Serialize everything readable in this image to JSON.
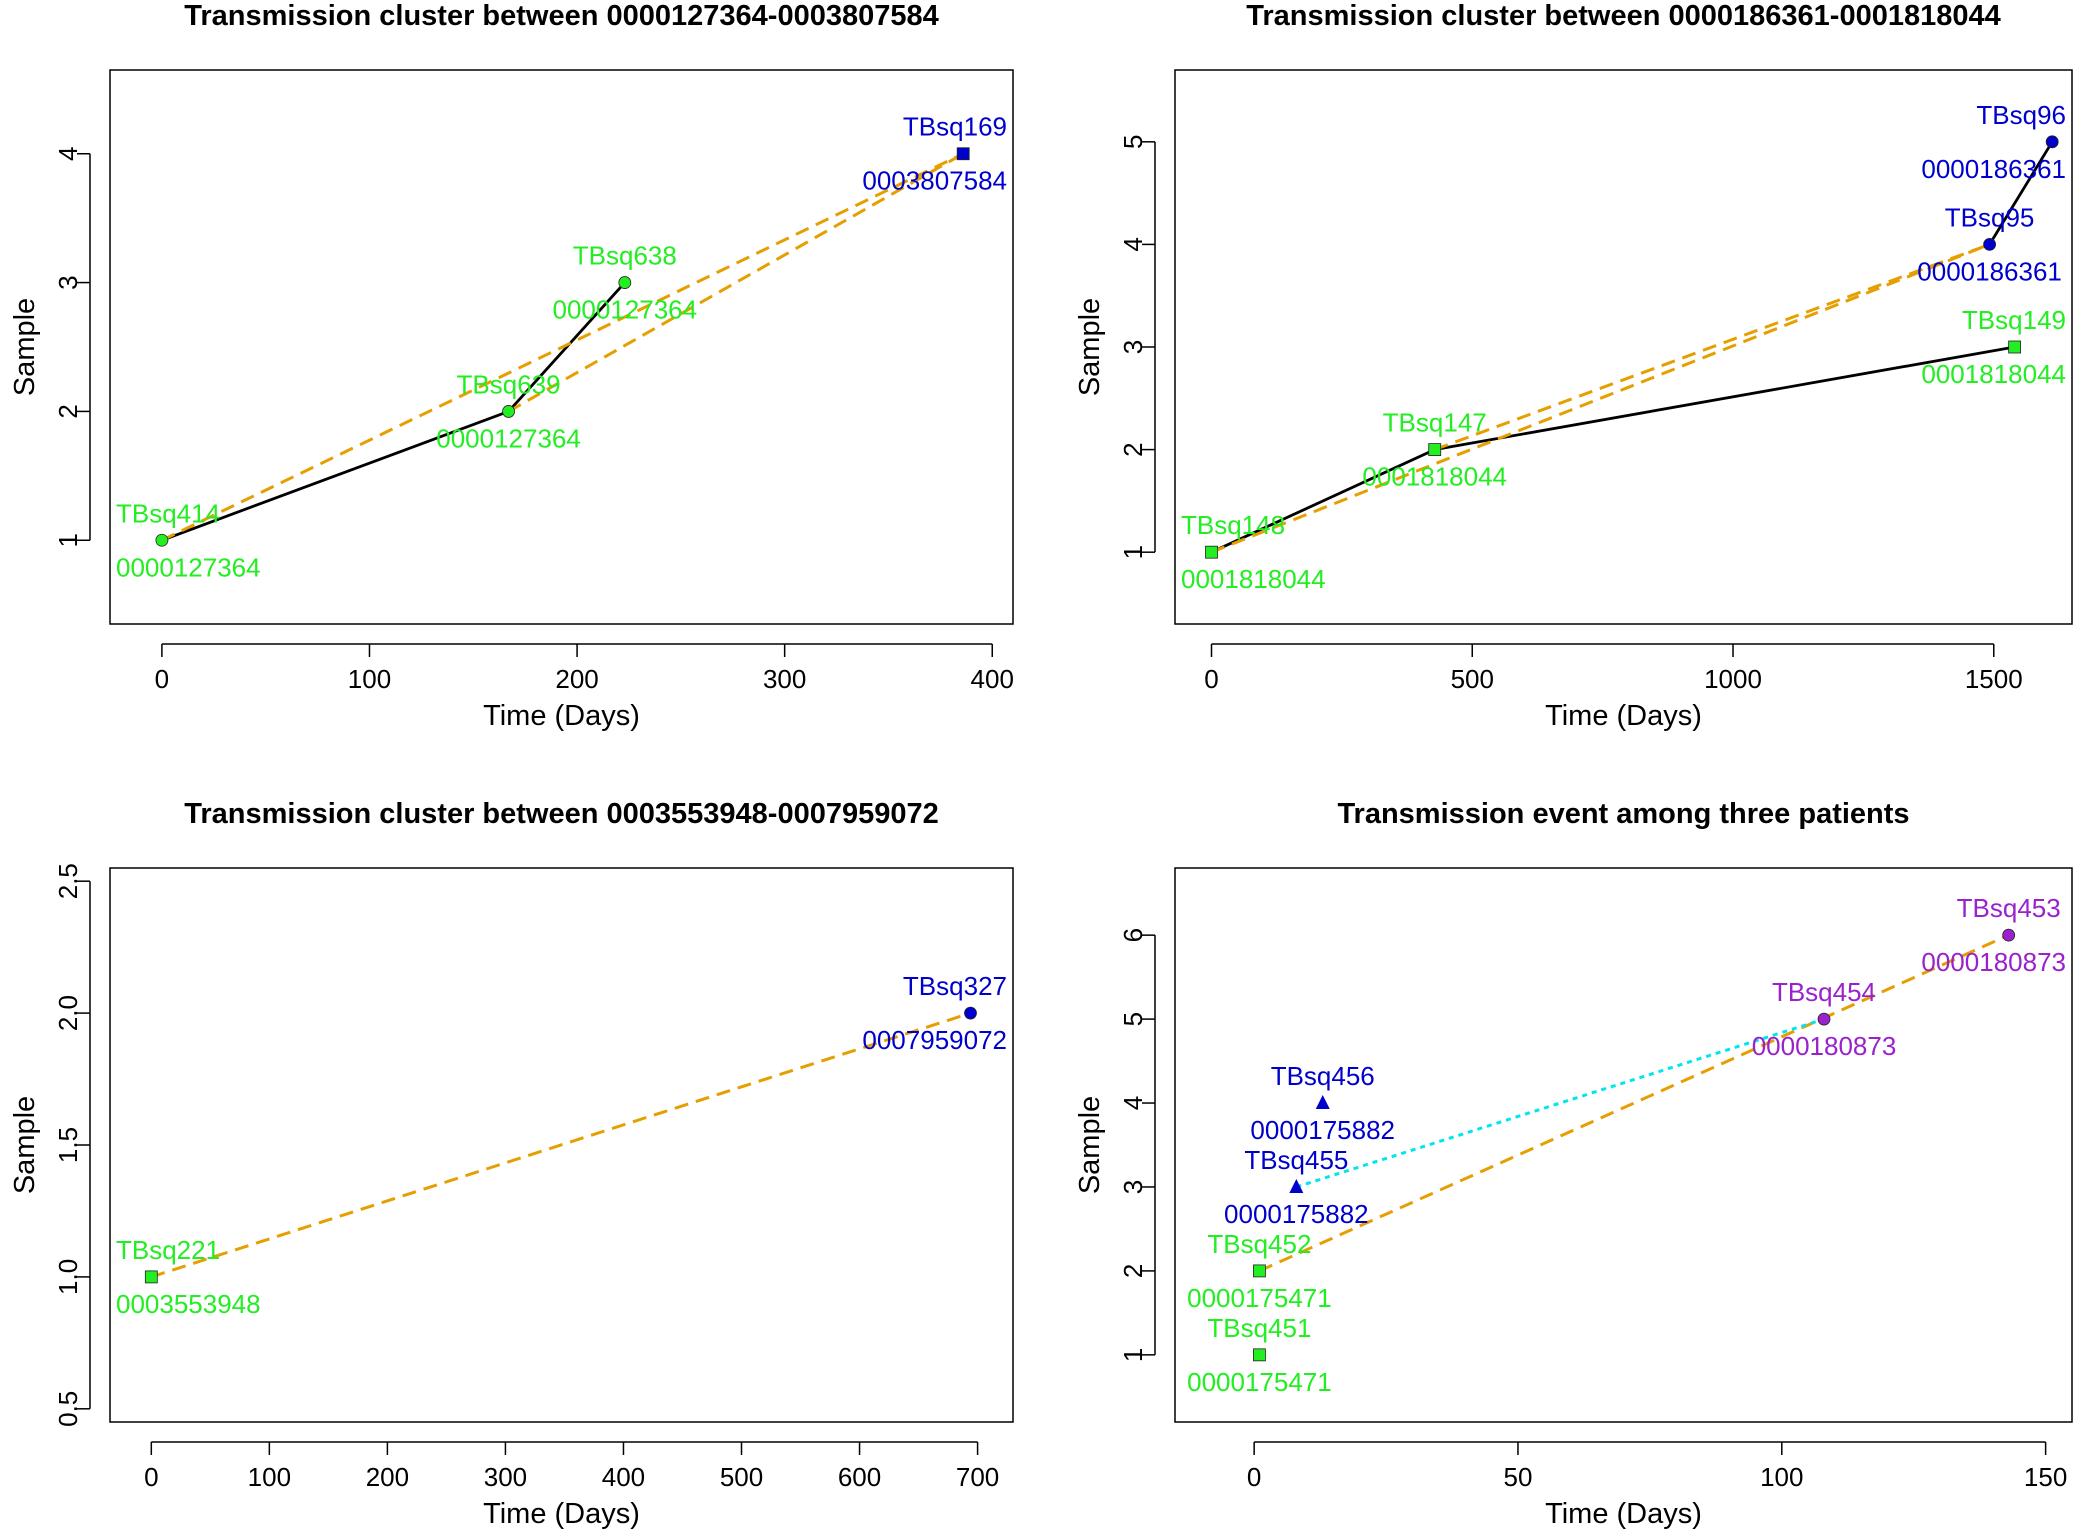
{
  "colors": {
    "green": "#22ee22",
    "blue": "#0000cc",
    "purple": "#9922cc",
    "orange": "#e69f00",
    "cyan": "#00e5ee",
    "black": "#000000"
  },
  "chart_data": [
    {
      "type": "line",
      "title": "Transmission cluster between 0000127364-0003807584",
      "xlabel": "Time (Days)",
      "ylabel": "Sample",
      "xlim": [
        -25,
        410
      ],
      "ylim": [
        0.35,
        4.65
      ],
      "xticks": [
        0,
        100,
        200,
        300,
        400
      ],
      "xtick_labels": [
        "0",
        "100",
        "200",
        "300",
        "400"
      ],
      "yticks": [
        1,
        2,
        3,
        4
      ],
      "ytick_labels": [
        "1",
        "2",
        "3",
        "4"
      ],
      "points": [
        {
          "x": 0,
          "y": 1,
          "name": "TBsq414",
          "patient": "0000127364",
          "color": "green",
          "marker": "circle"
        },
        {
          "x": 167,
          "y": 2,
          "name": "TBsq639",
          "patient": "0000127364",
          "color": "green",
          "marker": "circle"
        },
        {
          "x": 223,
          "y": 3,
          "name": "TBsq638",
          "patient": "0000127364",
          "color": "green",
          "marker": "circle"
        },
        {
          "x": 386,
          "y": 4,
          "name": "TBsq169",
          "patient": "0003807584",
          "color": "blue",
          "marker": "square"
        }
      ],
      "series": [
        {
          "name": "within-patient",
          "color": "black",
          "dash": "solid",
          "x": [
            0,
            167,
            223
          ],
          "y": [
            1,
            2,
            3
          ]
        },
        {
          "name": "transmission",
          "color": "orange",
          "dash": "dashed",
          "x": [
            0,
            386
          ],
          "y": [
            1,
            4
          ]
        },
        {
          "name": "transmission",
          "color": "orange",
          "dash": "dashed",
          "x": [
            167,
            386
          ],
          "y": [
            2,
            4
          ]
        }
      ]
    },
    {
      "type": "line",
      "title": "Transmission cluster between 0000186361-0001818044",
      "xlabel": "Time (Days)",
      "ylabel": "Sample",
      "xlim": [
        -70,
        1650
      ],
      "ylim": [
        0.3,
        5.7
      ],
      "xticks": [
        0,
        500,
        1000,
        1500
      ],
      "xtick_labels": [
        "0",
        "500",
        "1000",
        "1500"
      ],
      "yticks": [
        1,
        2,
        3,
        4,
        5
      ],
      "ytick_labels": [
        "1",
        "2",
        "3",
        "4",
        "5"
      ],
      "points": [
        {
          "x": 0,
          "y": 1,
          "name": "TBsq148",
          "patient": "0001818044",
          "color": "green",
          "marker": "square"
        },
        {
          "x": 428,
          "y": 2,
          "name": "TBsq147",
          "patient": "0001818044",
          "color": "green",
          "marker": "square"
        },
        {
          "x": 1540,
          "y": 3,
          "name": "TBsq149",
          "patient": "0001818044",
          "color": "green",
          "marker": "square"
        },
        {
          "x": 1492,
          "y": 4,
          "name": "TBsq95",
          "patient": "0000186361",
          "color": "blue",
          "marker": "circle"
        },
        {
          "x": 1612,
          "y": 5,
          "name": "TBsq96",
          "patient": "0000186361",
          "color": "blue",
          "marker": "circle"
        }
      ],
      "series": [
        {
          "name": "within-patient",
          "color": "black",
          "dash": "solid",
          "x": [
            0,
            428,
            1540
          ],
          "y": [
            1,
            2,
            3
          ]
        },
        {
          "name": "within-patient",
          "color": "black",
          "dash": "solid",
          "x": [
            1492,
            1612
          ],
          "y": [
            4,
            5
          ]
        },
        {
          "name": "transmission",
          "color": "orange",
          "dash": "dashed",
          "x": [
            0,
            1492
          ],
          "y": [
            1,
            4
          ]
        },
        {
          "name": "transmission",
          "color": "orange",
          "dash": "dashed",
          "x": [
            428,
            1492
          ],
          "y": [
            2,
            4
          ]
        }
      ]
    },
    {
      "type": "line",
      "title": "Transmission cluster between 0003553948-0007959072",
      "xlabel": "Time (Days)",
      "ylabel": "Sample",
      "xlim": [
        -35,
        730
      ],
      "ylim": [
        0.45,
        2.55
      ],
      "xticks": [
        0,
        100,
        200,
        300,
        400,
        500,
        600,
        700
      ],
      "xtick_labels": [
        "0",
        "100",
        "200",
        "300",
        "400",
        "500",
        "600",
        "700"
      ],
      "yticks": [
        0.5,
        1.0,
        1.5,
        2.0,
        2.5
      ],
      "ytick_labels": [
        "0.5",
        "1.0",
        "1.5",
        "2.0",
        "2.5"
      ],
      "points": [
        {
          "x": 0,
          "y": 1,
          "name": "TBsq221",
          "patient": "0003553948",
          "color": "green",
          "marker": "square"
        },
        {
          "x": 694,
          "y": 2,
          "name": "TBsq327",
          "patient": "0007959072",
          "color": "blue",
          "marker": "circle"
        }
      ],
      "series": [
        {
          "name": "transmission",
          "color": "orange",
          "dash": "dashed",
          "x": [
            0,
            694
          ],
          "y": [
            1,
            2
          ]
        }
      ]
    },
    {
      "type": "line",
      "title": "Transmission event among three patients",
      "xlabel": "Time (Days)",
      "ylabel": "Sample",
      "xlim": [
        -15,
        155
      ],
      "ylim": [
        0.2,
        6.8
      ],
      "xticks": [
        0,
        50,
        100,
        150
      ],
      "xtick_labels": [
        "0",
        "50",
        "100",
        "150"
      ],
      "yticks": [
        1,
        2,
        3,
        4,
        5,
        6
      ],
      "ytick_labels": [
        "1",
        "2",
        "3",
        "4",
        "5",
        "6"
      ],
      "points": [
        {
          "x": 1,
          "y": 1,
          "name": "TBsq451",
          "patient": "0000175471",
          "color": "green",
          "marker": "square"
        },
        {
          "x": 1,
          "y": 2,
          "name": "TBsq452",
          "patient": "0000175471",
          "color": "green",
          "marker": "square"
        },
        {
          "x": 8,
          "y": 3,
          "name": "TBsq455",
          "patient": "0000175882",
          "color": "blue",
          "marker": "triangle"
        },
        {
          "x": 13,
          "y": 4,
          "name": "TBsq456",
          "patient": "0000175882",
          "color": "blue",
          "marker": "triangle"
        },
        {
          "x": 108,
          "y": 5,
          "name": "TBsq454",
          "patient": "0000180873",
          "color": "purple",
          "marker": "circle"
        },
        {
          "x": 143,
          "y": 6,
          "name": "TBsq453",
          "patient": "0000180873",
          "color": "purple",
          "marker": "circle"
        }
      ],
      "series": [
        {
          "name": "transmission",
          "color": "orange",
          "dash": "dashed",
          "x": [
            1,
            143
          ],
          "y": [
            2,
            6
          ]
        },
        {
          "name": "transmission",
          "color": "cyan",
          "dash": "dotted",
          "x": [
            8,
            108
          ],
          "y": [
            3,
            5
          ]
        }
      ]
    }
  ]
}
